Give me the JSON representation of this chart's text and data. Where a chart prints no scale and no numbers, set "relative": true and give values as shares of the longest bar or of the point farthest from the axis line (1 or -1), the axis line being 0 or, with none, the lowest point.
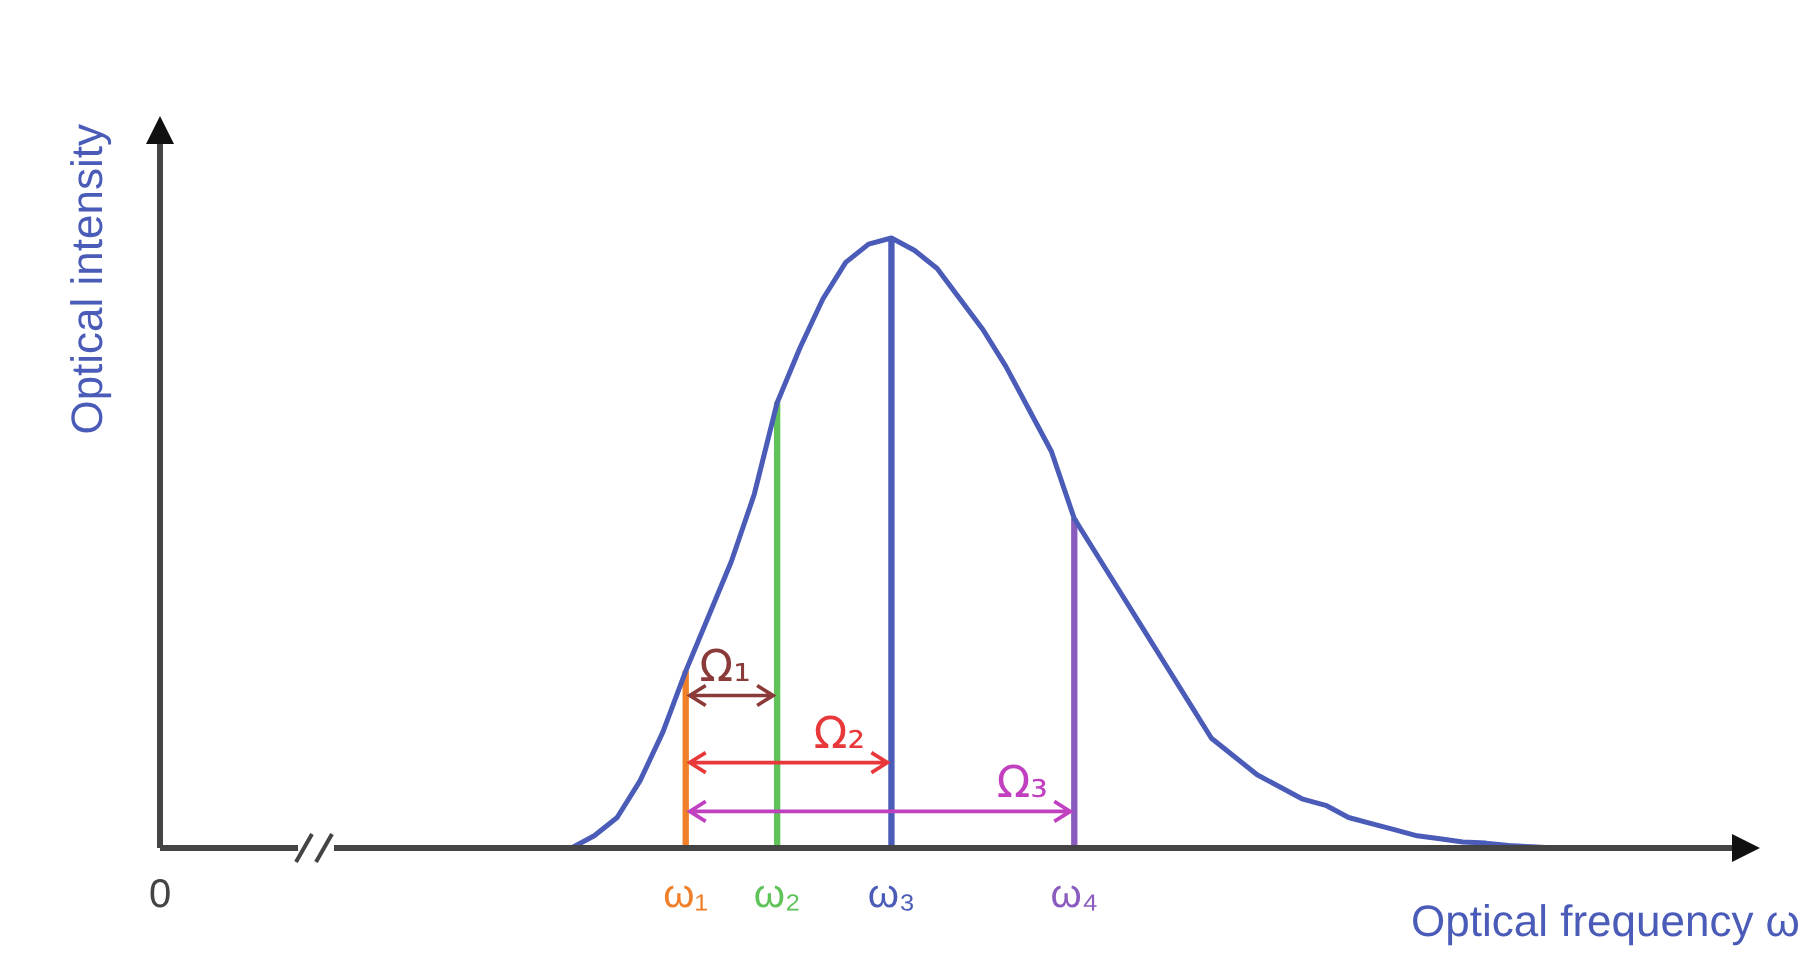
{
  "chart_data": {
    "type": "line",
    "xlabel": "Optical frequency ω",
    "ylabel": "Optical intensity",
    "relative": true,
    "legend": false,
    "grid": false,
    "marker": "none",
    "line_style": "solid",
    "categories": [
      "0",
      null,
      null,
      null,
      null,
      null,
      null,
      null,
      null,
      null,
      null,
      null,
      null,
      null,
      null,
      null,
      null,
      null,
      null,
      null,
      null,
      null,
      null,
      "ω₁",
      null,
      null,
      null,
      "ω₂",
      null,
      null,
      null,
      null,
      "ω₃",
      null,
      null,
      null,
      null,
      null,
      null,
      null,
      "ω₄",
      null,
      null,
      null,
      null,
      null,
      null,
      null,
      null,
      null,
      null,
      null,
      null,
      null,
      null,
      null,
      null,
      null,
      null,
      null,
      null,
      null,
      null,
      null,
      null,
      null,
      null,
      null,
      null,
      null,
      null
    ],
    "series": [
      {
        "color": "#4a5cb8",
        "values": [
          null,
          null,
          null,
          null,
          null,
          null,
          null,
          null,
          null,
          null,
          null,
          null,
          null,
          null,
          null,
          null,
          null,
          null,
          0,
          0.02,
          0.05,
          0.11,
          0.19,
          0.29,
          0.38,
          0.47,
          0.58,
          0.73,
          0.82,
          0.9,
          0.96,
          0.99,
          1,
          0.98,
          0.95,
          0.9,
          0.85,
          0.79,
          0.72,
          0.65,
          0.54,
          0.48,
          0.42,
          0.36,
          0.3,
          0.24,
          0.18,
          0.15,
          0.12,
          0.1,
          0.08,
          0.07,
          0.05,
          0.04,
          0.03,
          0.02,
          0.015,
          0.01,
          0.008,
          0.004,
          0.002,
          0,
          null,
          null,
          null,
          null,
          null,
          null,
          null,
          null,
          null
        ]
      },
      {
        "type": "bar",
        "values": [
          null,
          null,
          null,
          null,
          null,
          null,
          null,
          null,
          null,
          null,
          null,
          null,
          null,
          null,
          null,
          null,
          null,
          null,
          null,
          null,
          null,
          null,
          null,
          0.29,
          null,
          null,
          null,
          0.73,
          null,
          null,
          null,
          null,
          1,
          null,
          null,
          null,
          null,
          null,
          null,
          null,
          0.54,
          null,
          null,
          null,
          null,
          null,
          null,
          null,
          null,
          null,
          null,
          null,
          null,
          null,
          null,
          null,
          null,
          null,
          null,
          null,
          null,
          null,
          null,
          null,
          null,
          null,
          null,
          null,
          null,
          null,
          null
        ],
        "colors": [
          null,
          null,
          null,
          null,
          null,
          null,
          null,
          null,
          null,
          null,
          null,
          null,
          null,
          null,
          null,
          null,
          null,
          null,
          null,
          null,
          null,
          null,
          null,
          "#f07f2a",
          null,
          null,
          null,
          "#5fc35a",
          null,
          null,
          null,
          null,
          "#4a5cb8",
          null,
          null,
          null,
          null,
          null,
          null,
          null,
          "#8a5cc0",
          null,
          null,
          null,
          null,
          null,
          null,
          null,
          null,
          null,
          null,
          null,
          null,
          null,
          null,
          null,
          null,
          null,
          null,
          null,
          null,
          null,
          null,
          null,
          null,
          null,
          null,
          null,
          null,
          null,
          null
        ]
      }
    ],
    "annotations": [
      {
        "text": "Ω₁",
        "x": "ω₂",
        "y": 0.25
      },
      {
        "text": "Ω₂",
        "x": "ω₃",
        "y": 0.14
      },
      {
        "text": "Ω₃",
        "x": "ω₄",
        "y": 0.06
      }
    ]
  }
}
